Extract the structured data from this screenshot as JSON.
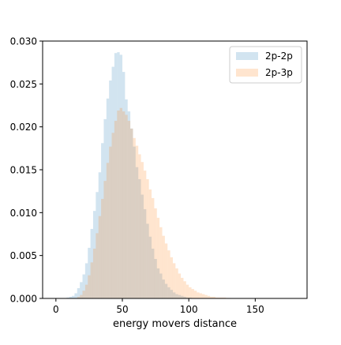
{
  "chart_data": {
    "type": "histogram",
    "title": "",
    "xlabel": "energy movers distance",
    "ylabel": "",
    "xlim": [
      -10,
      189
    ],
    "ylim": [
      0,
      0.03
    ],
    "x_ticks": [
      0,
      50,
      100,
      150
    ],
    "x_tick_labels": [
      "0",
      "50",
      "100",
      "150"
    ],
    "y_ticks": [
      0.0,
      0.005,
      0.01,
      0.015,
      0.02,
      0.025,
      0.03
    ],
    "y_tick_labels": [
      "0.000",
      "0.005",
      "0.010",
      "0.015",
      "0.020",
      "0.025",
      "0.030"
    ],
    "grid": false,
    "legend_position": "top-right",
    "bin_width": 2,
    "series": [
      {
        "name": "2p-2p",
        "color": "#1f77b4",
        "alpha": 0.2,
        "bins": [
          [
            8,
            0.0001
          ],
          [
            10,
            0.0002
          ],
          [
            12,
            0.0003
          ],
          [
            14,
            0.0006
          ],
          [
            16,
            0.0012
          ],
          [
            18,
            0.0019
          ],
          [
            20,
            0.0028
          ],
          [
            22,
            0.0041
          ],
          [
            24,
            0.0059
          ],
          [
            26,
            0.0081
          ],
          [
            28,
            0.0102
          ],
          [
            30,
            0.0124
          ],
          [
            32,
            0.0147
          ],
          [
            34,
            0.0181
          ],
          [
            36,
            0.0209
          ],
          [
            38,
            0.0233
          ],
          [
            40,
            0.0254
          ],
          [
            42,
            0.027
          ],
          [
            44,
            0.0286
          ],
          [
            46,
            0.0287
          ],
          [
            48,
            0.0284
          ],
          [
            50,
            0.0264
          ],
          [
            52,
            0.0232
          ],
          [
            54,
            0.0218
          ],
          [
            56,
            0.0198
          ],
          [
            58,
            0.0177
          ],
          [
            60,
            0.0153
          ],
          [
            62,
            0.0139
          ],
          [
            64,
            0.0121
          ],
          [
            66,
            0.0104
          ],
          [
            68,
            0.0087
          ],
          [
            70,
            0.0072
          ],
          [
            72,
            0.0058
          ],
          [
            74,
            0.0046
          ],
          [
            76,
            0.0035
          ],
          [
            78,
            0.0029
          ],
          [
            80,
            0.0022
          ],
          [
            82,
            0.0017
          ],
          [
            84,
            0.0013
          ],
          [
            86,
            0.001
          ],
          [
            88,
            0.0007
          ],
          [
            90,
            0.0005
          ],
          [
            92,
            0.0004
          ],
          [
            94,
            0.0003
          ],
          [
            96,
            0.0002
          ],
          [
            98,
            0.0001
          ],
          [
            100,
            0.0001
          ]
        ]
      },
      {
        "name": "2p-3p",
        "color": "#ff7f0e",
        "alpha": 0.2,
        "bins": [
          [
            16,
            0.0002
          ],
          [
            18,
            0.0004
          ],
          [
            20,
            0.0009
          ],
          [
            22,
            0.0016
          ],
          [
            24,
            0.0027
          ],
          [
            26,
            0.0042
          ],
          [
            28,
            0.0058
          ],
          [
            30,
            0.0076
          ],
          [
            32,
            0.0096
          ],
          [
            34,
            0.0116
          ],
          [
            36,
            0.0137
          ],
          [
            38,
            0.0158
          ],
          [
            40,
            0.0177
          ],
          [
            42,
            0.0193
          ],
          [
            44,
            0.0207
          ],
          [
            46,
            0.0219
          ],
          [
            48,
            0.0222
          ],
          [
            50,
            0.0218
          ],
          [
            52,
            0.0214
          ],
          [
            54,
            0.0207
          ],
          [
            56,
            0.0198
          ],
          [
            58,
            0.0187
          ],
          [
            60,
            0.0178
          ],
          [
            62,
            0.0168
          ],
          [
            64,
            0.0159
          ],
          [
            66,
            0.0149
          ],
          [
            68,
            0.0139
          ],
          [
            70,
            0.0127
          ],
          [
            72,
            0.0117
          ],
          [
            74,
            0.0105
          ],
          [
            76,
            0.0094
          ],
          [
            78,
            0.0083
          ],
          [
            80,
            0.0073
          ],
          [
            82,
            0.0064
          ],
          [
            84,
            0.0056
          ],
          [
            86,
            0.0048
          ],
          [
            88,
            0.0041
          ],
          [
            90,
            0.0035
          ],
          [
            92,
            0.0029
          ],
          [
            94,
            0.0024
          ],
          [
            96,
            0.002
          ],
          [
            98,
            0.0016
          ],
          [
            100,
            0.0013
          ],
          [
            102,
            0.0011
          ],
          [
            104,
            0.0009
          ],
          [
            106,
            0.0007
          ],
          [
            108,
            0.0006
          ],
          [
            110,
            0.0005
          ],
          [
            112,
            0.0004
          ],
          [
            114,
            0.0003
          ],
          [
            116,
            0.0002
          ],
          [
            118,
            0.0002
          ],
          [
            120,
            0.0001
          ],
          [
            122,
            0.0001
          ],
          [
            124,
            0.0001
          ],
          [
            126,
            0.0001
          ],
          [
            128,
            5e-05
          ],
          [
            130,
            5e-05
          ],
          [
            132,
            3e-05
          ],
          [
            134,
            2e-05
          ]
        ]
      }
    ]
  }
}
